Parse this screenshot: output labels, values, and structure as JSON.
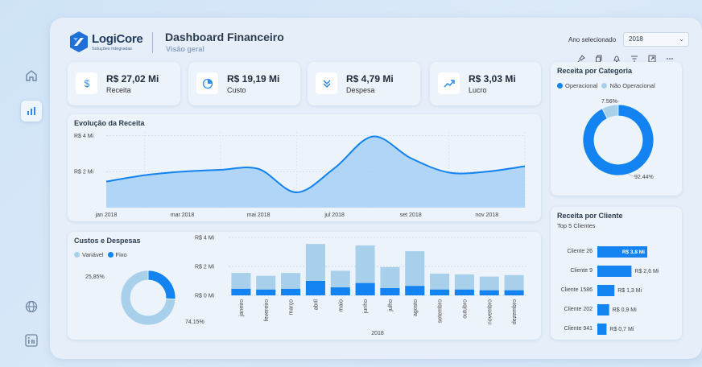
{
  "header": {
    "logo_name": "LogiCore",
    "logo_sub": "Soluções Integradas",
    "title": "Dashboard Financeiro",
    "subtitle": "Visão geral",
    "year_label": "Ano selecionado",
    "year_value": "2018"
  },
  "kpis": [
    {
      "value": "R$ 27,02 Mi",
      "label": "Receita",
      "icon": "dollar-icon"
    },
    {
      "value": "R$ 19,19 Mi",
      "label": "Custo",
      "icon": "pie-icon"
    },
    {
      "value": "R$ 4,79 Mi",
      "label": "Despesa",
      "icon": "chevrons-down-icon"
    },
    {
      "value": "R$ 3,03 Mi",
      "label": "Lucro",
      "icon": "trend-up-icon"
    }
  ],
  "colors": {
    "primary": "#1283f0",
    "light": "#a9d0ea",
    "area": "#a6cff5"
  },
  "evolucao": {
    "title": "Evolução da Receita",
    "chart_data": {
      "type": "area",
      "x": [
        "jan 2018",
        "fev 2018",
        "mar 2018",
        "abr 2018",
        "mai 2018",
        "jun 2018",
        "jul 2018",
        "ago 2018",
        "set 2018",
        "out 2018",
        "nov 2018",
        "dez 2018"
      ],
      "x_tick_labels": [
        "jan 2018",
        "mar 2018",
        "mai 2018",
        "jul 2018",
        "set 2018",
        "nov 2018"
      ],
      "values": [
        1.45,
        1.8,
        2.0,
        2.1,
        2.15,
        0.85,
        2.2,
        3.95,
        2.75,
        1.95,
        2.0,
        2.3
      ],
      "y_tick_labels": [
        "R$ 4 Mi",
        "R$ 2 Mi"
      ],
      "ylim": [
        0,
        4.2
      ]
    }
  },
  "categoria": {
    "title": "Receita por Categoria",
    "legend": [
      "Operacional",
      "Não Operacional"
    ],
    "chart_data": {
      "type": "pie",
      "labels": [
        "Operacional",
        "Não Operacional"
      ],
      "values": [
        92.44,
        7.56
      ],
      "value_labels": [
        "92,44%",
        "7,56%"
      ]
    }
  },
  "custos": {
    "title": "Custos e Despesas",
    "legend": [
      "Variável",
      "Fixo"
    ],
    "donut": {
      "type": "pie",
      "labels": [
        "Variável",
        "Fixo"
      ],
      "values": [
        74.15,
        25.85
      ],
      "value_labels": [
        "74,15%",
        "25,85%"
      ]
    },
    "chart_data": {
      "type": "bar",
      "categories": [
        "janeiro",
        "fevereiro",
        "março",
        "abril",
        "maio",
        "junho",
        "julho",
        "agosto",
        "setembro",
        "outubro",
        "novembro",
        "dezembro"
      ],
      "series": [
        {
          "name": "Fixo",
          "values": [
            0.45,
            0.4,
            0.45,
            1.0,
            0.55,
            0.85,
            0.5,
            0.65,
            0.4,
            0.4,
            0.35,
            0.35
          ]
        },
        {
          "name": "Variável",
          "values": [
            1.1,
            0.95,
            1.1,
            2.55,
            1.15,
            2.6,
            1.45,
            2.4,
            1.1,
            1.05,
            0.95,
            1.05
          ]
        }
      ],
      "y_tick_labels": [
        "R$ 4 Mi",
        "R$ 2 Mi",
        "R$ 0 Mi"
      ],
      "xlabel": "2018",
      "ylim": [
        0,
        4
      ]
    }
  },
  "clientes": {
    "title": "Receita por Cliente",
    "subtitle": "Top 5 Clientes",
    "chart_data": {
      "type": "bar",
      "categories": [
        "Cliente 26",
        "Cliente 9",
        "Cliente 1586",
        "Cliente 202",
        "Cliente 941"
      ],
      "values": [
        3.8,
        2.6,
        1.3,
        0.9,
        0.7
      ],
      "value_labels": [
        "R$ 3,8 Mi",
        "R$ 2,6 Mi",
        "R$ 1,3 Mi",
        "R$ 0,9 Mi",
        "R$ 0,7 Mi"
      ]
    }
  }
}
